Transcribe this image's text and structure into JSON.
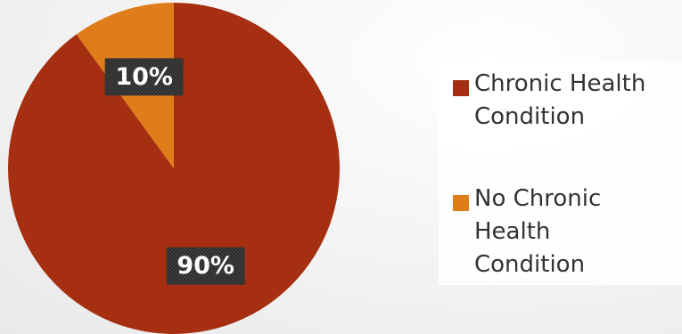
{
  "chart_data": {
    "type": "pie",
    "title": "",
    "categories": [
      "Chronic Health Condition",
      "No Chronic Health Condition"
    ],
    "values": [
      90,
      10
    ],
    "data_labels": [
      "90%",
      "10%"
    ],
    "colors": [
      "#a52f10",
      "#df7d1a"
    ],
    "legend_position": "right",
    "start_angle_deg": 0,
    "direction": "clockwise"
  },
  "legend": {
    "items": [
      {
        "label": "Chronic Health\nCondition",
        "color": "#a52f10"
      },
      {
        "label": "No Chronic\nHealth\nCondition",
        "color": "#df7d1a"
      }
    ]
  }
}
